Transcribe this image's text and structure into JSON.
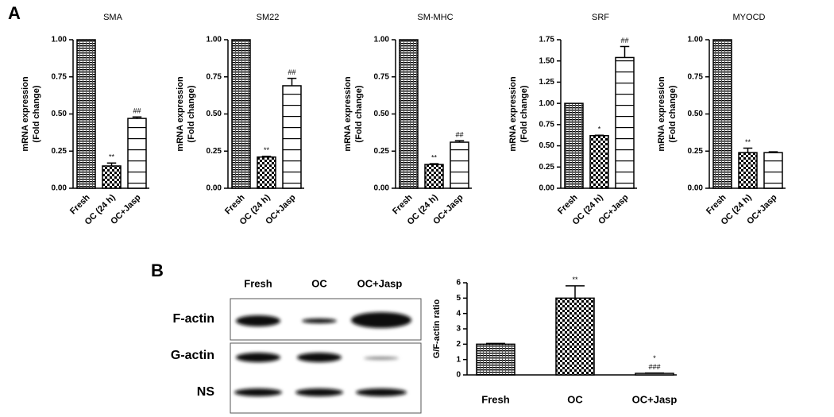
{
  "panel_labels": [
    "A",
    "B"
  ],
  "blot": {
    "columns": [
      "Fresh",
      "OC",
      "OC+Jasp"
    ],
    "rows": [
      "F-actin",
      "G-actin",
      "NS"
    ]
  },
  "chart_data": [
    {
      "type": "bar",
      "title": "SMA",
      "ylabel_lines": [
        "mRNA expression",
        "(Fold change)"
      ],
      "categories": [
        "Fresh",
        "OC (24 h)",
        "OC+Jasp"
      ],
      "values": [
        1.0,
        0.15,
        0.47
      ],
      "errors": [
        null,
        0.02,
        0.01
      ],
      "annotations": [
        [],
        [
          "**"
        ],
        [
          "##"
        ]
      ],
      "color": "#000000",
      "ylim": [
        0,
        1.0
      ],
      "yticks": [
        {
          "value": 0,
          "label": "0.00"
        },
        {
          "value": 0.25,
          "label": "0.25"
        },
        {
          "value": 0.5,
          "label": "0.50"
        },
        {
          "value": 0.75,
          "label": "0.75"
        },
        {
          "value": 1.0,
          "label": "1.00"
        }
      ]
    },
    {
      "type": "bar",
      "title": "SM22",
      "ylabel_lines": [
        "mRNA expression",
        "(Fold change)"
      ],
      "categories": [
        "Fresh",
        "OC (24 h)",
        "OC+Jasp"
      ],
      "values": [
        1.0,
        0.21,
        0.69
      ],
      "errors": [
        null,
        0.005,
        0.05
      ],
      "annotations": [
        [],
        [
          "**"
        ],
        [
          "##"
        ]
      ],
      "color": "#000000",
      "ylim": [
        0,
        1.0
      ],
      "yticks": [
        {
          "value": 0,
          "label": "0.00"
        },
        {
          "value": 0.25,
          "label": "0.25"
        },
        {
          "value": 0.5,
          "label": "0.50"
        },
        {
          "value": 0.75,
          "label": "0.75"
        },
        {
          "value": 1.0,
          "label": "1.00"
        }
      ]
    },
    {
      "type": "bar",
      "title": "SM-MHC",
      "ylabel_lines": [
        "mRNA expression",
        "(Fold change)"
      ],
      "categories": [
        "Fresh",
        "OC (24 h)",
        "OC+Jasp"
      ],
      "values": [
        1.0,
        0.16,
        0.31
      ],
      "errors": [
        null,
        0.005,
        0.01
      ],
      "annotations": [
        [],
        [
          "**"
        ],
        [
          "##"
        ]
      ],
      "color": "#000000",
      "ylim": [
        0,
        1.0
      ],
      "yticks": [
        {
          "value": 0,
          "label": "0.00"
        },
        {
          "value": 0.25,
          "label": "0.25"
        },
        {
          "value": 0.5,
          "label": "0.50"
        },
        {
          "value": 0.75,
          "label": "0.75"
        },
        {
          "value": 1.0,
          "label": "1.00"
        }
      ]
    },
    {
      "type": "bar",
      "title": "SRF",
      "ylabel_lines": [
        "mRNA expression",
        "(Fold change)"
      ],
      "categories": [
        "Fresh",
        "OC (24 h)",
        "OC+Jasp"
      ],
      "values": [
        1.0,
        0.62,
        1.54
      ],
      "errors": [
        null,
        0.005,
        0.13
      ],
      "annotations": [
        [],
        [
          "*"
        ],
        [
          "##"
        ]
      ],
      "color": "#000000",
      "ylim": [
        0,
        1.75
      ],
      "yticks": [
        {
          "value": 0,
          "label": "0.00"
        },
        {
          "value": 0.25,
          "label": "0.25"
        },
        {
          "value": 0.5,
          "label": "0.50"
        },
        {
          "value": 0.75,
          "label": "0.75"
        },
        {
          "value": 1.0,
          "label": "1.00"
        },
        {
          "value": 1.25,
          "label": "1.25"
        },
        {
          "value": 1.5,
          "label": "1.50"
        },
        {
          "value": 1.75,
          "label": "1.75"
        }
      ]
    },
    {
      "type": "bar",
      "title": "MYOCD",
      "ylabel_lines": [
        "mRNA expression",
        "(Fold change)"
      ],
      "categories": [
        "Fresh",
        "OC (24 h)",
        "OC+Jasp"
      ],
      "values": [
        1.0,
        0.24,
        0.24
      ],
      "errors": [
        null,
        0.03,
        0.005
      ],
      "annotations": [
        [],
        [
          "**"
        ],
        []
      ],
      "color": "#000000",
      "ylim": [
        0,
        1.0
      ],
      "yticks": [
        {
          "value": 0,
          "label": "0.00"
        },
        {
          "value": 0.25,
          "label": "0.25"
        },
        {
          "value": 0.5,
          "label": "0.50"
        },
        {
          "value": 0.75,
          "label": "0.75"
        },
        {
          "value": 1.0,
          "label": "1.00"
        }
      ]
    },
    {
      "type": "bar",
      "ylabel_lines": [
        "G/F-actin ratio"
      ],
      "categories": [
        "Fresh",
        "OC",
        "OC+Jasp"
      ],
      "values": [
        2.0,
        5.0,
        0.1
      ],
      "errors": [
        0.05,
        0.8,
        0.02
      ],
      "annotations": [
        [],
        [
          "**"
        ],
        [
          "*",
          "###"
        ]
      ],
      "color": "#000000",
      "ylim": [
        0,
        6
      ],
      "yticks": [
        0,
        1,
        2,
        3,
        4,
        5,
        6
      ]
    }
  ]
}
